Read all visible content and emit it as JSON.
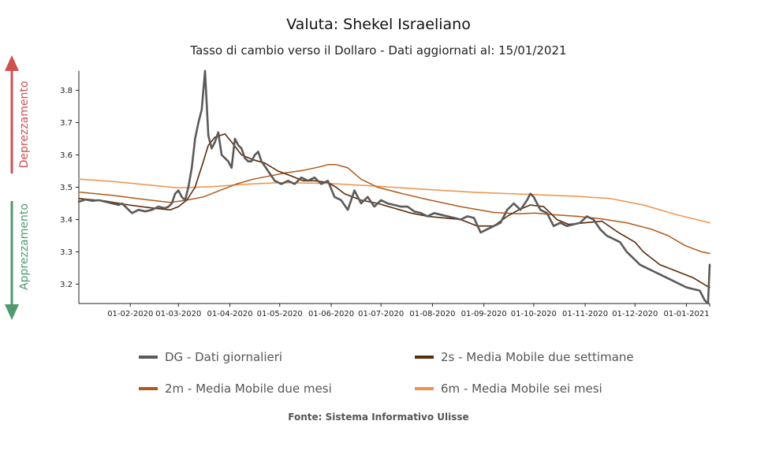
{
  "title": "Valuta: Shekel Israeliano",
  "subtitle": "Tasso di cambio verso il Dollaro - Dati aggiornati al: 15/01/2021",
  "source": "Fonte: Sistema Informativo Ulisse",
  "side_labels": {
    "up": "Deprezzamento",
    "down": "Apprezzamento",
    "up_color": "#d05050",
    "down_color": "#4f9a6f"
  },
  "legend": [
    {
      "key": "dg",
      "label": "DG - Dati giornalieri",
      "color": "#5a5a5a"
    },
    {
      "key": "s2",
      "label": "2s - Media Mobile due settimane",
      "color": "#5a2a0a"
    },
    {
      "key": "m2",
      "label": "2m - Media Mobile due mesi",
      "color": "#b0581a"
    },
    {
      "key": "m6",
      "label": "6m - Media Mobile sei mesi",
      "color": "#f0904a"
    }
  ],
  "chart_data": {
    "type": "line",
    "title": "Valuta: Shekel Israeliano",
    "xlabel": "",
    "ylabel": "",
    "x_start": "01-01-2020",
    "x_end": "15-01-2021",
    "x_days_total": 380,
    "ylim": [
      3.14,
      3.86
    ],
    "yticks": [
      3.2,
      3.3,
      3.4,
      3.5,
      3.6,
      3.7,
      3.8
    ],
    "xticks": [
      {
        "label": "01-02-2020",
        "day": 31
      },
      {
        "label": "01-03-2020",
        "day": 60
      },
      {
        "label": "01-04-2020",
        "day": 91
      },
      {
        "label": "01-05-2020",
        "day": 121
      },
      {
        "label": "01-06-2020",
        "day": 152
      },
      {
        "label": "01-07-2020",
        "day": 182
      },
      {
        "label": "01-08-2020",
        "day": 213
      },
      {
        "label": "01-09-2020",
        "day": 244
      },
      {
        "label": "01-10-2020",
        "day": 274
      },
      {
        "label": "01-11-2020",
        "day": 305
      },
      {
        "label": "01-12-2020",
        "day": 335
      },
      {
        "label": "01-01-2021",
        "day": 366
      }
    ],
    "series": [
      {
        "key": "m6",
        "name": "6m - Media Mobile sei mesi",
        "days": [
          0,
          20,
          40,
          60,
          80,
          100,
          120,
          150,
          180,
          210,
          240,
          270,
          300,
          320,
          340,
          360,
          380
        ],
        "values": [
          3.525,
          3.518,
          3.508,
          3.498,
          3.502,
          3.509,
          3.514,
          3.512,
          3.503,
          3.493,
          3.484,
          3.478,
          3.472,
          3.465,
          3.445,
          3.415,
          3.39
        ]
      },
      {
        "key": "m2",
        "name": "2m - Media Mobile due mesi",
        "days": [
          0,
          20,
          40,
          55,
          65,
          75,
          85,
          95,
          105,
          115,
          125,
          135,
          145,
          150,
          155,
          162,
          170,
          180,
          195,
          210,
          230,
          250,
          265,
          275,
          285,
          300,
          315,
          330,
          345,
          355,
          365,
          375,
          380
        ],
        "values": [
          3.485,
          3.475,
          3.462,
          3.453,
          3.46,
          3.47,
          3.49,
          3.51,
          3.525,
          3.535,
          3.545,
          3.552,
          3.563,
          3.57,
          3.57,
          3.56,
          3.525,
          3.5,
          3.48,
          3.462,
          3.44,
          3.422,
          3.418,
          3.42,
          3.415,
          3.41,
          3.402,
          3.39,
          3.37,
          3.35,
          3.32,
          3.3,
          3.295
        ]
      },
      {
        "key": "s2",
        "name": "2s - Media Mobile due settimane",
        "days": [
          0,
          15,
          30,
          45,
          55,
          60,
          65,
          70,
          75,
          78,
          82,
          88,
          92,
          98,
          105,
          112,
          120,
          128,
          135,
          142,
          150,
          155,
          160,
          170,
          180,
          190,
          200,
          210,
          220,
          230,
          240,
          250,
          258,
          265,
          272,
          280,
          288,
          295,
          305,
          315,
          325,
          335,
          340,
          350,
          360,
          370,
          378,
          380
        ],
        "values": [
          3.465,
          3.458,
          3.445,
          3.435,
          3.43,
          3.44,
          3.46,
          3.5,
          3.58,
          3.63,
          3.655,
          3.665,
          3.64,
          3.6,
          3.585,
          3.575,
          3.55,
          3.535,
          3.52,
          3.52,
          3.515,
          3.5,
          3.48,
          3.46,
          3.45,
          3.435,
          3.42,
          3.41,
          3.405,
          3.4,
          3.38,
          3.38,
          3.41,
          3.43,
          3.445,
          3.44,
          3.4,
          3.385,
          3.39,
          3.395,
          3.36,
          3.33,
          3.3,
          3.26,
          3.24,
          3.22,
          3.195,
          3.19
        ]
      },
      {
        "key": "dg",
        "name": "DG - Dati giornalieri",
        "days": [
          0,
          4,
          8,
          12,
          16,
          20,
          24,
          26,
          28,
          32,
          36,
          40,
          44,
          48,
          52,
          54,
          56,
          58,
          60,
          62,
          64,
          66,
          68,
          70,
          72,
          74,
          76,
          78,
          80,
          82,
          84,
          86,
          88,
          90,
          92,
          94,
          96,
          98,
          100,
          102,
          104,
          106,
          108,
          110,
          114,
          118,
          122,
          126,
          130,
          134,
          138,
          142,
          146,
          150,
          154,
          158,
          162,
          166,
          170,
          174,
          178,
          182,
          186,
          190,
          194,
          198,
          202,
          206,
          210,
          214,
          218,
          222,
          226,
          230,
          234,
          238,
          242,
          246,
          250,
          254,
          258,
          262,
          266,
          270,
          272,
          274,
          278,
          282,
          286,
          290,
          294,
          298,
          302,
          306,
          310,
          314,
          318,
          322,
          326,
          330,
          334,
          338,
          342,
          346,
          350,
          354,
          358,
          362,
          366,
          370,
          374,
          377,
          379,
          380
        ],
        "values": [
          3.455,
          3.462,
          3.458,
          3.46,
          3.455,
          3.45,
          3.445,
          3.45,
          3.44,
          3.42,
          3.43,
          3.425,
          3.43,
          3.44,
          3.435,
          3.44,
          3.45,
          3.48,
          3.49,
          3.47,
          3.46,
          3.5,
          3.56,
          3.65,
          3.7,
          3.74,
          3.86,
          3.66,
          3.62,
          3.64,
          3.67,
          3.6,
          3.59,
          3.58,
          3.56,
          3.65,
          3.63,
          3.62,
          3.59,
          3.58,
          3.58,
          3.6,
          3.61,
          3.58,
          3.55,
          3.52,
          3.51,
          3.52,
          3.51,
          3.53,
          3.52,
          3.53,
          3.51,
          3.52,
          3.47,
          3.46,
          3.43,
          3.49,
          3.45,
          3.47,
          3.44,
          3.46,
          3.45,
          3.445,
          3.44,
          3.44,
          3.425,
          3.42,
          3.41,
          3.42,
          3.415,
          3.41,
          3.405,
          3.4,
          3.41,
          3.405,
          3.36,
          3.37,
          3.38,
          3.39,
          3.43,
          3.45,
          3.43,
          3.46,
          3.48,
          3.47,
          3.43,
          3.42,
          3.38,
          3.39,
          3.38,
          3.385,
          3.39,
          3.41,
          3.4,
          3.37,
          3.35,
          3.34,
          3.33,
          3.3,
          3.28,
          3.26,
          3.25,
          3.24,
          3.23,
          3.22,
          3.21,
          3.2,
          3.19,
          3.185,
          3.18,
          3.15,
          3.14,
          3.26
        ]
      }
    ]
  }
}
